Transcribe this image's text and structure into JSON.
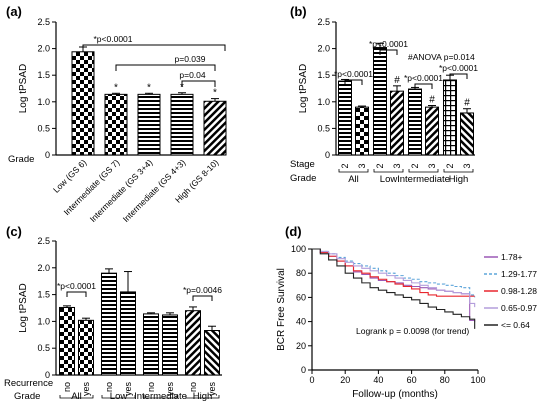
{
  "chart_data": [
    {
      "panel": "(a)",
      "type": "bar",
      "ylabel": "Log tPSAD",
      "ylim": [
        0,
        2.5
      ],
      "yticks": [
        "0",
        "0.5",
        "1.0",
        "1.5",
        "2.0",
        "2.5"
      ],
      "row_label": "Grade",
      "categories": [
        "Low (GS 6)",
        "Intermediate (GS 7)",
        "Intermediate (GS 3+4)",
        "Intermediate (GS 4+3)",
        "High (GS 8-10)"
      ],
      "values": [
        1.94,
        1.14,
        1.14,
        1.14,
        1.01
      ],
      "errors": [
        0.09,
        0.02,
        0.02,
        0.03,
        0.05
      ],
      "bar_marks": [
        "",
        "*",
        "*",
        "*",
        "*"
      ],
      "annotations": [
        "*p<0.0001",
        "p=0.039",
        "p=0.04"
      ]
    },
    {
      "panel": "(b)",
      "type": "bar",
      "ylabel": "Log tPSAD",
      "ylim": [
        0,
        2.5
      ],
      "yticks": [
        "0",
        "0.5",
        "1.0",
        "1.5",
        "2.0",
        "2.5"
      ],
      "row1_label": "Stage",
      "row2_label": "Grade",
      "stage_labels": [
        "2",
        "3",
        "2",
        "3",
        "2",
        "3",
        "2",
        "3"
      ],
      "group_labels": [
        "All",
        "Low",
        "Intermediate",
        "High"
      ],
      "values": [
        1.39,
        0.9,
        2.02,
        1.2,
        1.24,
        0.9,
        1.41,
        0.79
      ],
      "errors": [
        0.03,
        0.02,
        0.08,
        0.1,
        0.03,
        0.03,
        0.09,
        0.08
      ],
      "bar_marks": [
        "",
        "",
        "",
        "#",
        "",
        "#",
        "",
        "#"
      ],
      "annotations": [
        "*p<0.0001",
        "*p<0.0001",
        "*p<0.0001",
        "*p<0.0001",
        "#ANOVA p=0.014"
      ]
    },
    {
      "panel": "(c)",
      "type": "bar",
      "ylabel": "Log tPSAD",
      "ylim": [
        0,
        2.5
      ],
      "yticks": [
        "0",
        "0.5",
        "1.0",
        "1.5",
        "2.0",
        "2.5"
      ],
      "row1_label": "Recurrence",
      "row2_label": "Grade",
      "recurrence_labels": [
        "no",
        "yes",
        "no",
        "yes",
        "no",
        "yes",
        "no",
        "yes"
      ],
      "group_labels": [
        "All",
        "Low",
        "Intermediate",
        "High"
      ],
      "values": [
        1.26,
        1.02,
        1.9,
        1.55,
        1.14,
        1.12,
        1.2,
        0.83
      ],
      "errors": [
        0.03,
        0.04,
        0.08,
        0.38,
        0.02,
        0.04,
        0.07,
        0.08
      ],
      "annotations": [
        "*p<0.0001",
        "*p=0.0046"
      ]
    },
    {
      "panel": "(d)",
      "type": "line",
      "xlabel": "Follow-up (months)",
      "ylabel": "BCR Free Survival",
      "xlim": [
        0,
        100
      ],
      "ylim": [
        0,
        100
      ],
      "xticks": [
        "0",
        "20",
        "40",
        "60",
        "80",
        "100"
      ],
      "yticks": [
        "0",
        "20",
        "40",
        "60",
        "80",
        "100"
      ],
      "legend_position": "right",
      "annotation": "Logrank p = 0.0098 (for trend)",
      "series": [
        {
          "name": "1.78+",
          "color": "#9b59b6",
          "dash": "",
          "x": [
            0,
            5,
            10,
            15,
            20,
            25,
            30,
            35,
            40,
            45,
            50,
            55,
            60,
            65,
            70,
            75,
            80,
            85,
            90,
            95,
            98
          ],
          "y": [
            100,
            97,
            94,
            90,
            86,
            81,
            79,
            76,
            74,
            73,
            72,
            70,
            69,
            68,
            67,
            66,
            65,
            64,
            63,
            41,
            40
          ]
        },
        {
          "name": "1.29-1.77",
          "color": "#5da5da",
          "dash": "3,2",
          "x": [
            0,
            5,
            10,
            15,
            20,
            25,
            30,
            35,
            40,
            45,
            50,
            55,
            60,
            65,
            70,
            75,
            80,
            85,
            90,
            95,
            98
          ],
          "y": [
            100,
            98,
            96,
            93,
            90,
            88,
            86,
            84,
            82,
            80,
            78,
            76,
            75,
            73,
            72,
            71,
            70,
            69,
            68,
            62,
            60
          ]
        },
        {
          "name": "0.98-1.28",
          "color": "#e8262d",
          "dash": "",
          "x": [
            0,
            5,
            10,
            15,
            20,
            25,
            30,
            35,
            40,
            45,
            50,
            55,
            60,
            65,
            70,
            75,
            80,
            85,
            90,
            95,
            98
          ],
          "y": [
            100,
            97,
            94,
            90,
            86,
            82,
            80,
            77,
            75,
            73,
            71,
            69,
            67,
            64,
            62,
            61,
            61,
            61,
            61,
            61,
            61
          ]
        },
        {
          "name": "0.65-0.97",
          "color": "#b39ddb",
          "dash": "",
          "x": [
            0,
            5,
            10,
            15,
            20,
            25,
            30,
            35,
            40,
            45,
            50,
            55,
            60,
            65,
            70,
            75,
            80,
            85,
            90,
            95,
            98
          ],
          "y": [
            100,
            98,
            96,
            92,
            89,
            86,
            84,
            82,
            80,
            78,
            76,
            74,
            72,
            70,
            68,
            66,
            65,
            64,
            63,
            55,
            52
          ]
        },
        {
          "name": "<= 0.64",
          "color": "#222222",
          "dash": "",
          "x": [
            0,
            5,
            10,
            15,
            20,
            25,
            30,
            35,
            40,
            45,
            50,
            55,
            60,
            65,
            70,
            75,
            80,
            85,
            90,
            95,
            98
          ],
          "y": [
            100,
            96,
            91,
            86,
            80,
            76,
            72,
            68,
            66,
            64,
            62,
            60,
            58,
            55,
            52,
            50,
            48,
            46,
            44,
            42,
            34
          ]
        }
      ]
    }
  ]
}
